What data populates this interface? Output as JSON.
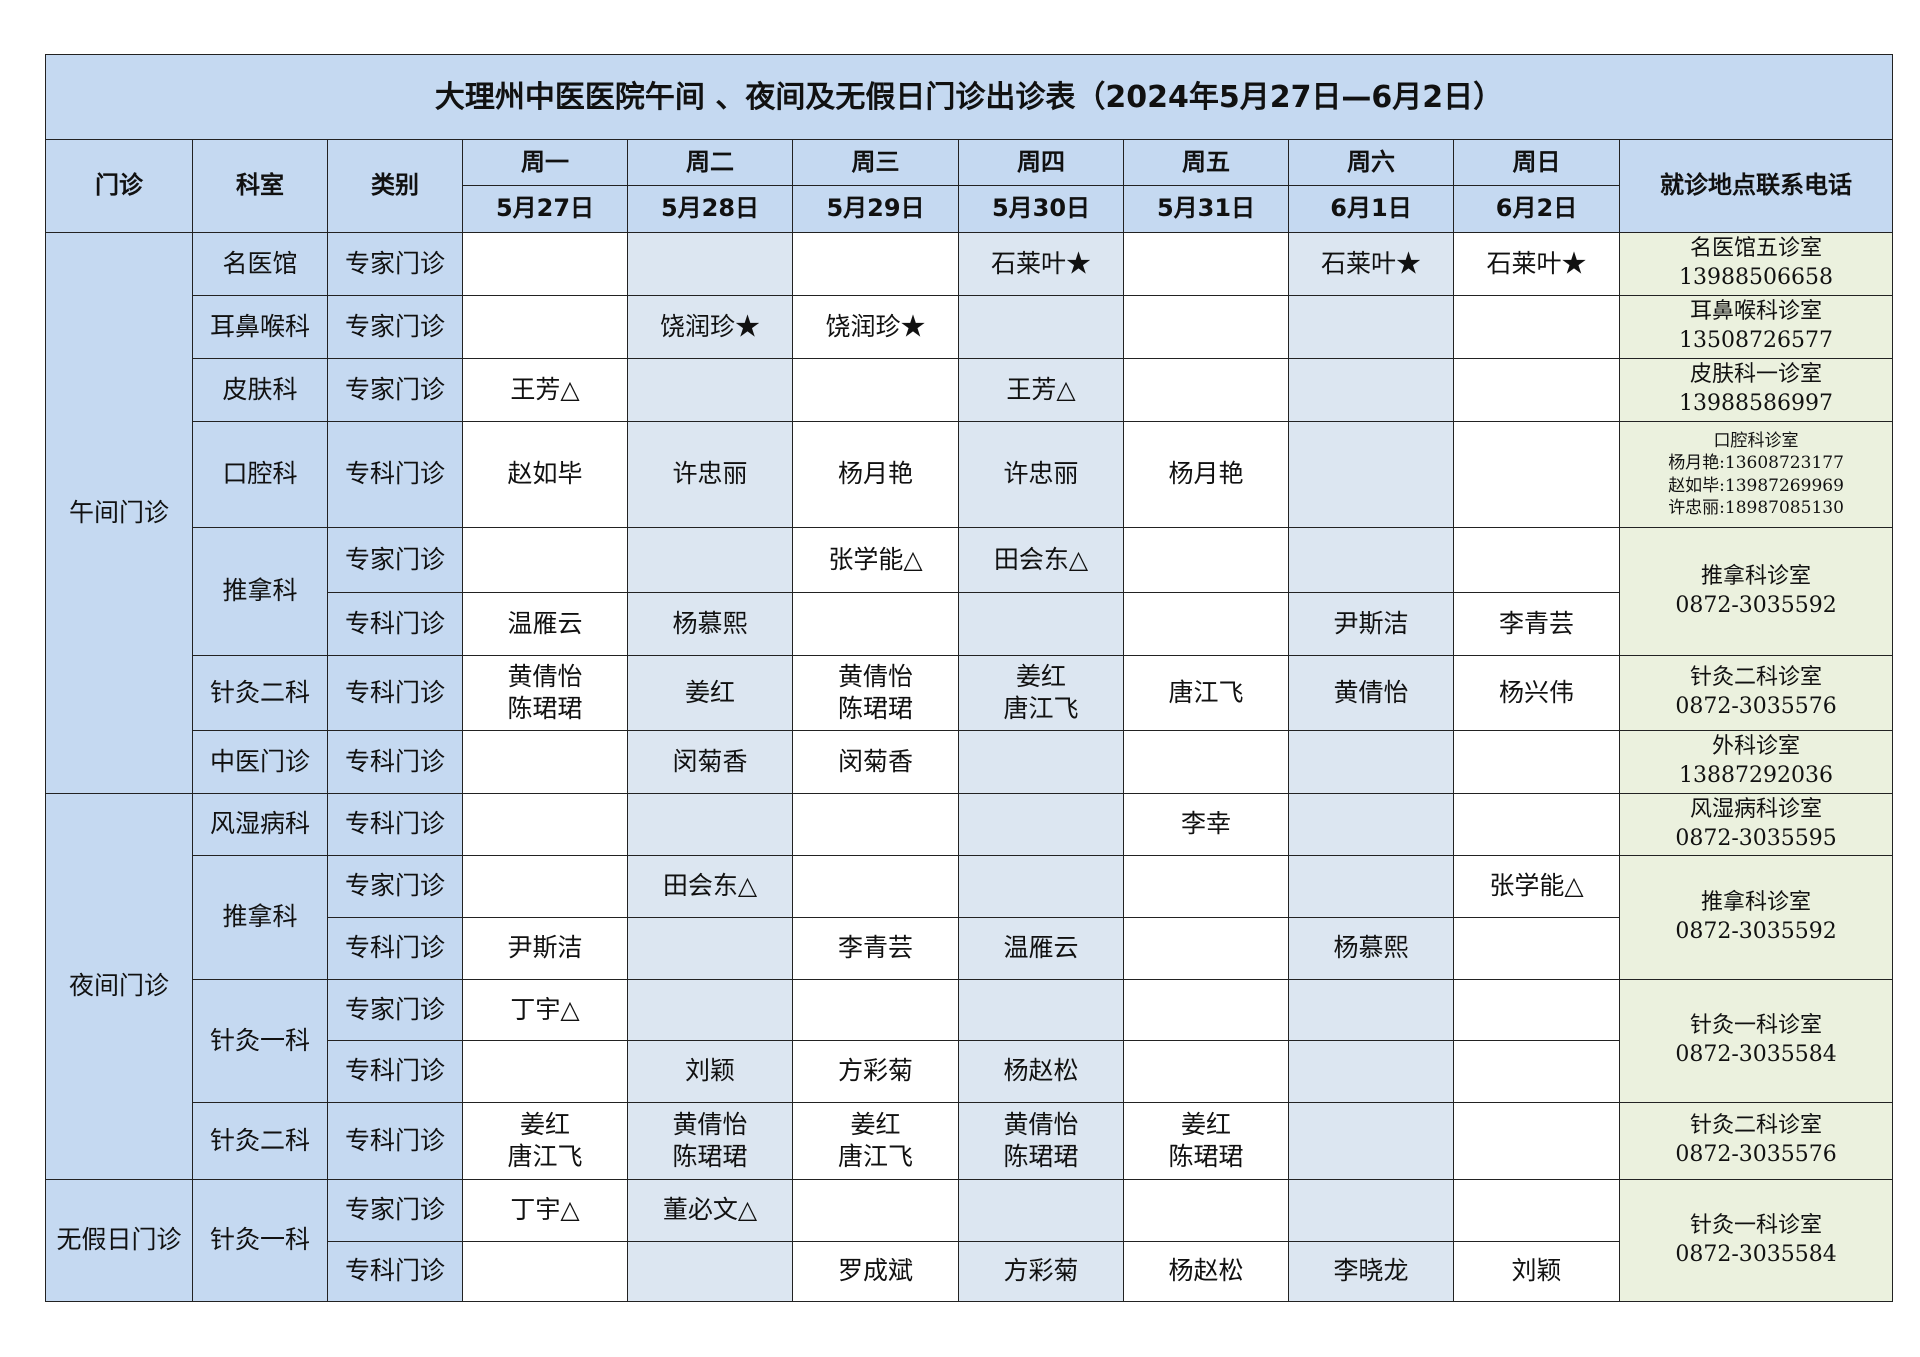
{
  "title": "大理州中医医院午间 、夜间及无假日门诊出诊表（2024年5月27日—6月2日）",
  "headers": {
    "clinic": "门诊",
    "dept": "科室",
    "type": "类别",
    "contact": "就诊地点联系电话",
    "weekdays": [
      "周一",
      "周二",
      "周三",
      "周四",
      "周五",
      "周六",
      "周日"
    ],
    "dates": [
      "5月27日",
      "5月28日",
      "5月29日",
      "5月30日",
      "5月31日",
      "6月1日",
      "6月2日"
    ]
  },
  "colors": {
    "header_bg": "#c5d9f1",
    "alt_col_bg": "#dce6f1",
    "contact_bg": "#ebf1de"
  },
  "sections": [
    {
      "name": "午间门诊",
      "depts": [
        {
          "name": "名医馆",
          "contact": "名医馆五诊室\n13988506658",
          "rows": [
            {
              "type": "专家门诊",
              "days": [
                "",
                "",
                "",
                "石莱叶★",
                "",
                "石莱叶★",
                "石莱叶★"
              ]
            }
          ]
        },
        {
          "name": "耳鼻喉科",
          "contact": "耳鼻喉科诊室\n13508726577",
          "rows": [
            {
              "type": "专家门诊",
              "days": [
                "",
                "饶润珍★",
                "饶润珍★",
                "",
                "",
                "",
                ""
              ]
            }
          ]
        },
        {
          "name": "皮肤科",
          "contact": "皮肤科一诊室\n13988586997",
          "rows": [
            {
              "type": "专家门诊",
              "days": [
                "王芳△",
                "",
                "",
                "王芳△",
                "",
                "",
                ""
              ]
            }
          ]
        },
        {
          "name": "口腔科",
          "contact": "口腔科诊室\n杨月艳:13608723177\n赵如毕:13987269969\n许忠丽:18987085130",
          "small": true,
          "rows": [
            {
              "type": "专科门诊",
              "days": [
                "赵如毕",
                "许忠丽",
                "杨月艳",
                "许忠丽",
                "杨月艳",
                "",
                ""
              ]
            }
          ]
        },
        {
          "name": "推拿科",
          "contact": "推拿科诊室\n0872-3035592",
          "rows": [
            {
              "type": "专家门诊",
              "days": [
                "",
                "",
                "张学能△",
                "田会东△",
                "",
                "",
                ""
              ]
            },
            {
              "type": "专科门诊",
              "days": [
                "温雁云",
                "杨慕熙",
                "",
                "",
                "",
                "尹斯洁",
                "李青芸"
              ]
            }
          ]
        },
        {
          "name": "针灸二科",
          "contact": "针灸二科诊室\n0872-3035576",
          "rows": [
            {
              "type": "专科门诊",
              "days": [
                "黄倩怡\n陈珺珺",
                "姜红",
                "黄倩怡\n陈珺珺",
                "姜红\n唐江飞",
                "唐江飞",
                "黄倩怡",
                "杨兴伟"
              ]
            }
          ]
        },
        {
          "name": "中医门诊",
          "contact": "外科诊室\n13887292036",
          "rows": [
            {
              "type": "专科门诊",
              "days": [
                "",
                "闵菊香",
                "闵菊香",
                "",
                "",
                "",
                ""
              ]
            }
          ]
        }
      ]
    },
    {
      "name": "夜间门诊",
      "depts": [
        {
          "name": "风湿病科",
          "contact": "风湿病科诊室\n0872-3035595",
          "rows": [
            {
              "type": "专科门诊",
              "days": [
                "",
                "",
                "",
                "",
                "李幸",
                "",
                ""
              ]
            }
          ]
        },
        {
          "name": "推拿科",
          "contact": "推拿科诊室\n0872-3035592",
          "rows": [
            {
              "type": "专家门诊",
              "days": [
                "",
                "田会东△",
                "",
                "",
                "",
                "",
                "张学能△"
              ]
            },
            {
              "type": "专科门诊",
              "days": [
                "尹斯洁",
                "",
                "李青芸",
                "温雁云",
                "",
                "杨慕熙",
                ""
              ]
            }
          ]
        },
        {
          "name": "针灸一科",
          "contact": "针灸一科诊室\n0872-3035584",
          "rows": [
            {
              "type": "专家门诊",
              "days": [
                "丁宇△",
                "",
                "",
                "",
                "",
                "",
                ""
              ]
            },
            {
              "type": "专科门诊",
              "days": [
                "",
                "刘颖",
                "方彩菊",
                "杨赵松",
                "",
                "",
                ""
              ]
            }
          ]
        },
        {
          "name": "针灸二科",
          "contact": "针灸二科诊室\n0872-3035576",
          "rows": [
            {
              "type": "专科门诊",
              "days": [
                "姜红\n唐江飞",
                "黄倩怡\n陈珺珺",
                "姜红\n唐江飞",
                "黄倩怡\n陈珺珺",
                "姜红\n陈珺珺",
                "",
                ""
              ]
            }
          ]
        }
      ]
    },
    {
      "name": "无假日门诊",
      "depts": [
        {
          "name": "针灸一科",
          "contact": "针灸一科诊室\n0872-3035584",
          "rows": [
            {
              "type": "专家门诊",
              "days": [
                "丁宇△",
                "董必文△",
                "",
                "",
                "",
                "",
                ""
              ]
            },
            {
              "type": "专科门诊",
              "days": [
                "",
                "",
                "罗成斌",
                "方彩菊",
                "杨赵松",
                "李晓龙",
                "刘颖"
              ]
            }
          ]
        }
      ]
    }
  ]
}
